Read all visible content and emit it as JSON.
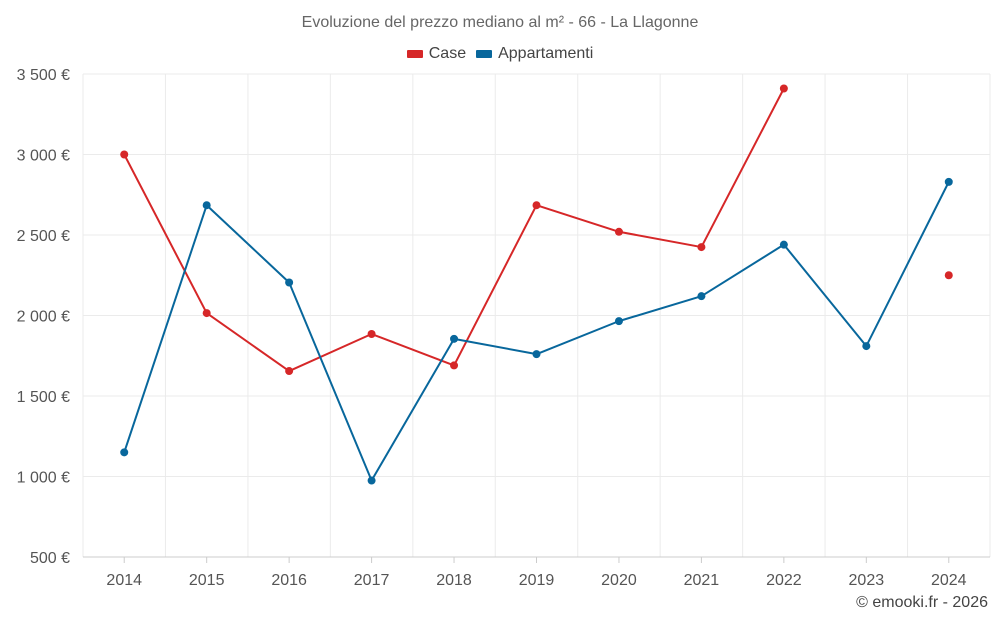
{
  "title": "Evoluzione del prezzo mediano al m² - 66 - La Llagonne",
  "credit": "© emooki.fr - 2026",
  "colors": {
    "case": "#d62728",
    "appartamenti": "#08679c",
    "grid": "#ebebeb",
    "axis": "#cccccc",
    "tick_text": "#555555"
  },
  "chart_data": {
    "type": "line",
    "title": "Evoluzione del prezzo mediano al m² - 66 - La Llagonne",
    "xlabel": "",
    "ylabel": "",
    "categories": [
      "2014",
      "2015",
      "2016",
      "2017",
      "2018",
      "2019",
      "2020",
      "2021",
      "2022",
      "2023",
      "2024"
    ],
    "ylim": [
      500,
      3500
    ],
    "yticks": [
      500,
      1000,
      1500,
      2000,
      2500,
      3000,
      3500
    ],
    "ytick_labels": [
      "500 €",
      "1 000 €",
      "1 500 €",
      "2 000 €",
      "2 500 €",
      "3 000 €",
      "3 500 €"
    ],
    "legend_position": "top-center",
    "grid": true,
    "series": [
      {
        "name": "Case",
        "color": "#d62728",
        "values": [
          3000,
          2015,
          1655,
          1885,
          1690,
          2685,
          2520,
          2425,
          3410,
          null,
          2250
        ]
      },
      {
        "name": "Appartamenti",
        "color": "#08679c",
        "values": [
          1150,
          2685,
          2205,
          975,
          1855,
          1760,
          1965,
          2120,
          2440,
          1810,
          2830
        ]
      }
    ]
  }
}
